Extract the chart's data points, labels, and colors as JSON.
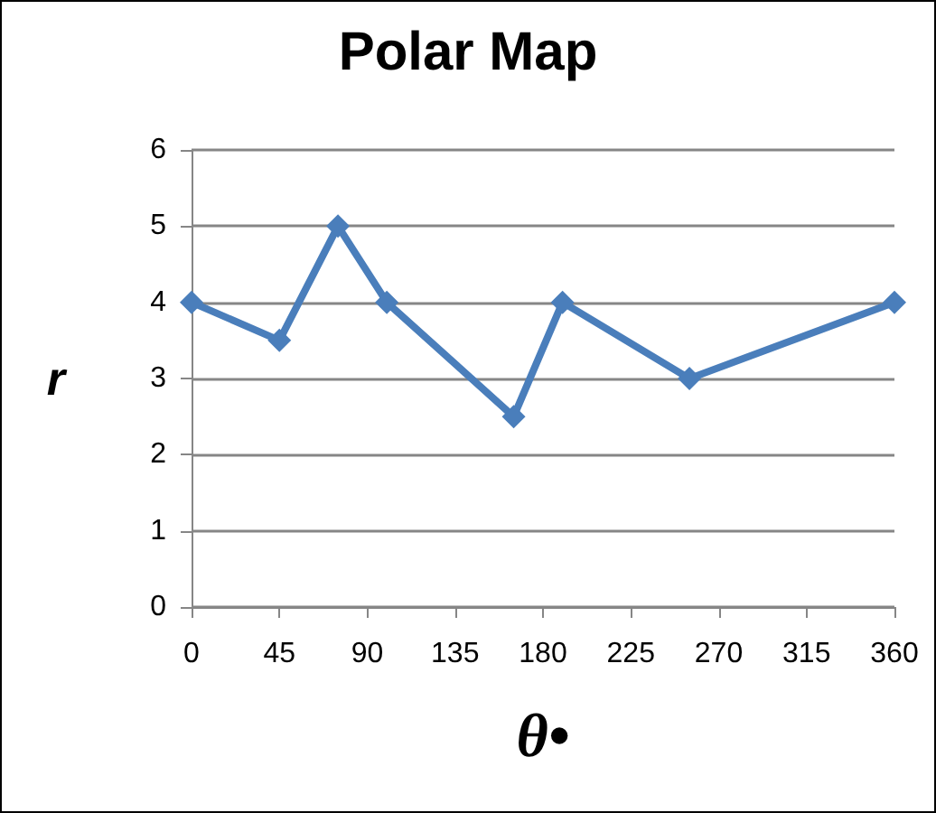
{
  "chart_data": {
    "type": "line",
    "title": "Polar Map",
    "xlabel": "θ•",
    "ylabel": "r",
    "x": [
      0,
      45,
      75,
      100,
      165,
      190,
      255,
      360
    ],
    "series": [
      {
        "color": "#4a7ebb",
        "values": [
          4,
          3.5,
          5,
          4,
          2.5,
          4,
          3,
          4
        ]
      }
    ],
    "xlim": [
      0,
      360
    ],
    "xticks": [
      0,
      45,
      90,
      135,
      180,
      225,
      270,
      315,
      360
    ],
    "ylim": [
      0,
      6
    ],
    "yticks": [
      0,
      1,
      2,
      3,
      4,
      5,
      6
    ],
    "grid": "y",
    "marker": "diamond",
    "line_style": "solid"
  }
}
